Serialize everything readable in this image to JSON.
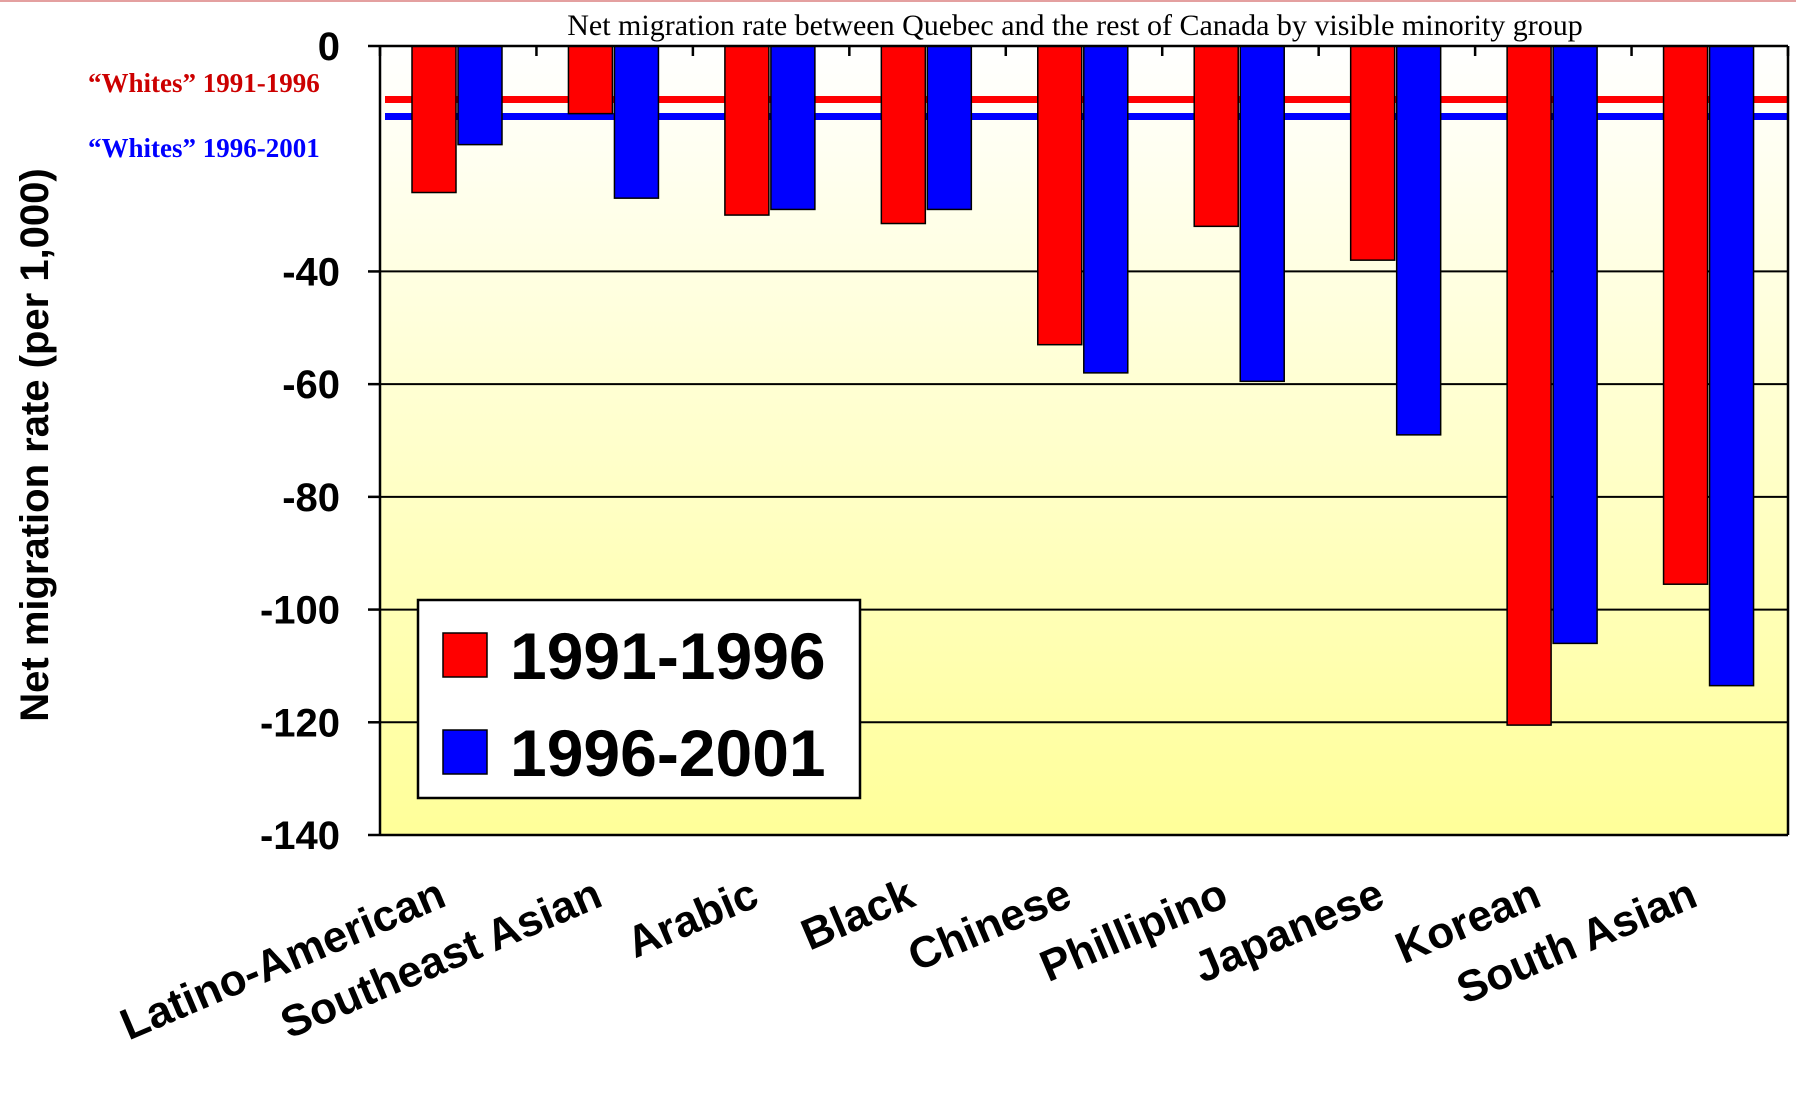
{
  "chart_data": {
    "type": "bar",
    "title": "Net migration rate between Quebec and the rest of Canada by visible minority group",
    "ylabel": "Net migration rate (per 1,000)",
    "xlabel": "",
    "ylim": [
      -140,
      0
    ],
    "yticks": [
      0,
      -40,
      -60,
      -80,
      -100,
      -120,
      -140
    ],
    "grid": true,
    "legend_position": "bottom-left",
    "categories": [
      "Latino-American",
      "Southeast Asian",
      "Arabic",
      "Black",
      "Chinese",
      "Phillipino",
      "Japanese",
      "Korean",
      "South Asian"
    ],
    "series": [
      {
        "name": "1991-1996",
        "color": "#ff0000",
        "values": [
          -26,
          -12,
          -30,
          -31.5,
          -53,
          -32,
          -38,
          -120.5,
          -95.5
        ]
      },
      {
        "name": "1996-2001",
        "color": "#0000ff",
        "values": [
          -17.5,
          -27,
          -29,
          -29,
          -58,
          -59.5,
          -69,
          -106,
          -113.5
        ]
      }
    ],
    "reference_lines": [
      {
        "label": "“Whites” 1991-1996",
        "value": -9.5,
        "color": "#ff0000",
        "text_color": "#cc0000"
      },
      {
        "label": "“Whites” 1996-2001",
        "value": -12.5,
        "color": "#0000ff",
        "text_color": "#0000ff"
      }
    ],
    "colors": {
      "plot_top": "#ffffff",
      "plot_bottom": "#ffff99",
      "frame": "#000000"
    }
  }
}
